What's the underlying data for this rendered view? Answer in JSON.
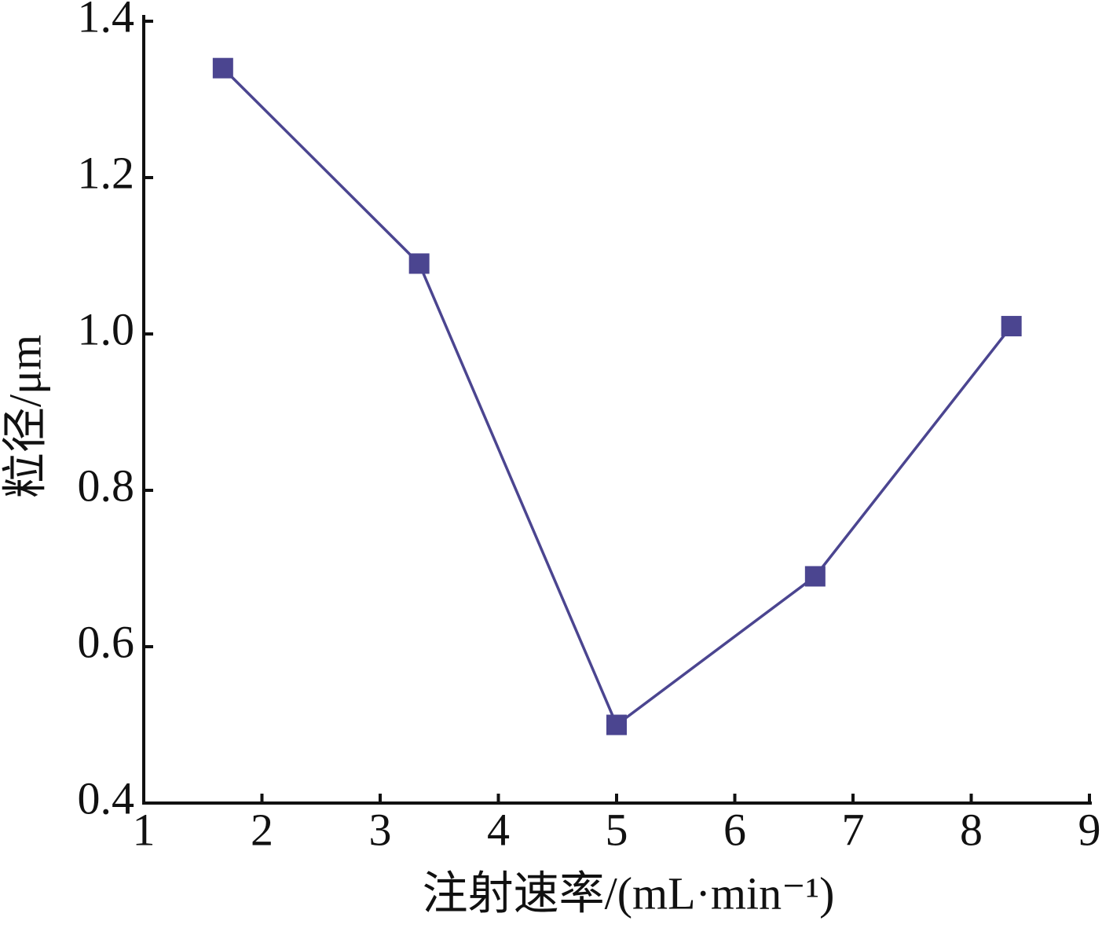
{
  "chart_data": {
    "type": "line",
    "x_label": "注射速率/(mL·min⁻¹)",
    "y_label": "粒径/μm",
    "xlim": [
      1,
      9
    ],
    "xticks": [
      1,
      2,
      3,
      4,
      5,
      6,
      7,
      8,
      9
    ],
    "ylim": [
      0.4,
      1.4
    ],
    "yticks": [
      0.4,
      0.6,
      0.8,
      {
        "value": 1.0,
        "label": "1.0"
      },
      1.2,
      1.4
    ],
    "grid": false,
    "series": [
      {
        "color": "#4b4590",
        "x": [
          1.67,
          3.33,
          5.0,
          6.68,
          8.34
        ],
        "values": [
          1.34,
          1.09,
          0.5,
          0.69,
          1.01
        ]
      }
    ]
  }
}
